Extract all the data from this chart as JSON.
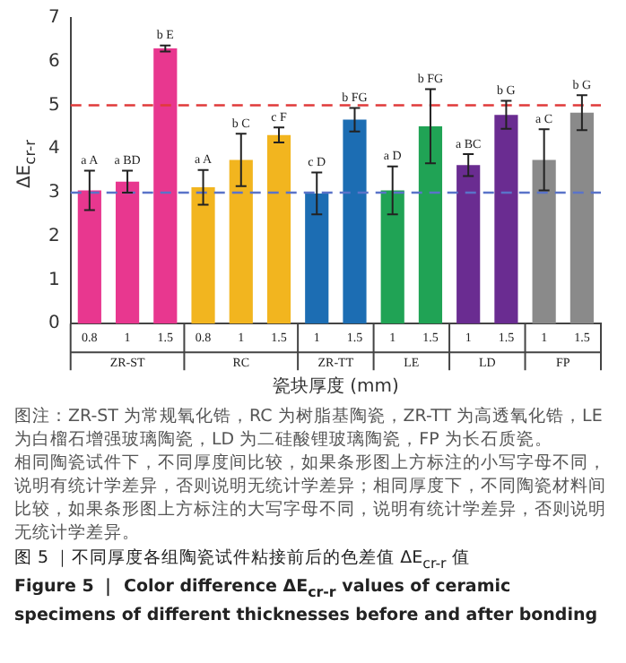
{
  "chart_data": {
    "type": "bar",
    "title": "图 5 ｜不同厚度各组陶瓷试件粘接前后的色差值 ΔE$_{cr-r}$ 值",
    "subtitle": "Figure 5 ｜ Color difference ΔE$_{cr-r}$ values of ceramic specimens of different thicknesses before and after bonding",
    "xlabel": "瓷块厚度 (mm)",
    "ylabel": "ΔE$_{cr-r}$",
    "categories": [
      "0.8",
      "1",
      "1.5",
      "0.8",
      "1",
      "1.5",
      "1",
      "1.5",
      "1",
      "1.5",
      "1",
      "1.5",
      "1",
      "1.5"
    ],
    "values": [
      3.05,
      3.25,
      6.3,
      3.12,
      3.75,
      4.32,
      2.98,
      4.67,
      3.05,
      4.52,
      3.63,
      4.78,
      3.75,
      4.83
    ],
    "errors": [
      0.45,
      0.25,
      0.07,
      0.4,
      0.6,
      0.17,
      0.48,
      0.27,
      0.55,
      0.85,
      0.25,
      0.32,
      0.7,
      0.4
    ],
    "colors": [
      "#e8378f",
      "#e8378f",
      "#e8378f",
      "#f2b51f",
      "#f2b51f",
      "#f2b51f",
      "#1c6db3",
      "#1c6db3",
      "#20a355",
      "#20a355",
      "#6a2c91",
      "#6a2c91",
      "#8a8a8a",
      "#8a8a8a"
    ],
    "value_labels": [
      "a A",
      "a BD",
      "b E",
      "a A",
      "b C",
      "c F",
      "c D",
      "b FG",
      "a D",
      "b FG",
      "a BC",
      "b G",
      "a C",
      "b G"
    ],
    "ylim": [
      0,
      7
    ],
    "yticks": [
      0,
      1,
      2,
      3,
      4,
      5,
      6,
      7
    ],
    "grid": false,
    "legend": false,
    "ref_lines": [
      {
        "axis": "y",
        "value": 5,
        "color": "#e03a3a",
        "line_style": "dashed"
      },
      {
        "axis": "y",
        "value": 3,
        "color": "#5a73c9",
        "line_style": "dashed"
      }
    ],
    "annotations": [
      "ZR-ST",
      "RC",
      "ZR-TT",
      "LE",
      "LD",
      "FP",
      "图注：ZR-ST 为常规氧化锆，RC 为树脂基陶瓷，ZR-TT 为高透氧化锆，LE 为白榴石增强玻璃陶瓷，LD 为二硅酸锂玻璃陶瓷，FP 为长石质瓷。",
      "相同陶瓷试件下，不同厚度间比较，如果条形图上方标注的小写字母不同，说明有统计学差异，否则说明无统计学差异；相同厚度下，不同陶瓷材料间比较，如果条形图上方标注的大写字母不同，说明有统计学差异，否则说明无统计学差异。"
    ]
  }
}
